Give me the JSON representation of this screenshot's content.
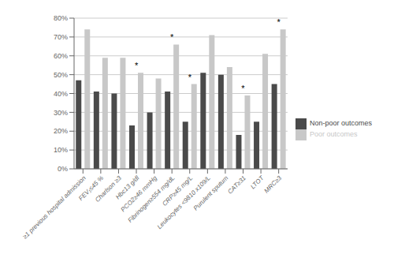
{
  "chart_data": {
    "type": "bar",
    "categories": [
      "≥1 previous hospital admission",
      "FEV₁≤45 %",
      "Charlson ≥3",
      "Hbc13 g/dl",
      "PCO2≥46 mmHg",
      "Fibrinogen≥554 mg/dL",
      "CRP≥45 mg/L",
      "Leukocytes <9810 x109/L",
      "Purulent sputum",
      "CAT≥31",
      "LTOT",
      "MRC≥3"
    ],
    "series": [
      {
        "name": "Non-poor outcomes",
        "color": "#4a4a4a",
        "values": [
          47,
          41,
          40,
          23,
          30,
          41,
          25,
          51,
          50,
          18,
          25,
          45
        ]
      },
      {
        "name": "Poor outcomes",
        "color": "#c8c8c8",
        "values": [
          74,
          59,
          59,
          51,
          48,
          66,
          45,
          71,
          54,
          39,
          61,
          74
        ]
      }
    ],
    "ylim": [
      0,
      80
    ],
    "yticks": [
      {
        "value": 0,
        "label": "0%"
      },
      {
        "value": 10,
        "label": "10%"
      },
      {
        "value": 20,
        "label": "20%"
      },
      {
        "value": 30,
        "label": "30%"
      },
      {
        "value": 40,
        "label": "40%"
      },
      {
        "value": 50,
        "label": "50%"
      },
      {
        "value": 60,
        "label": "60%"
      },
      {
        "value": 70,
        "label": "70%"
      },
      {
        "value": 80,
        "label": "80%"
      }
    ],
    "grid": true,
    "legend": "right",
    "annotations": [
      {
        "text": "*",
        "category": "Hbc13 g/dl"
      },
      {
        "text": "*",
        "category": "Fibrinogen≥554 mg/dL"
      },
      {
        "text": "*",
        "category": "CRP≥45 mg/L"
      },
      {
        "text": "*",
        "category": "CAT≥31"
      },
      {
        "text": "*",
        "category": "MRC≥3"
      }
    ]
  }
}
